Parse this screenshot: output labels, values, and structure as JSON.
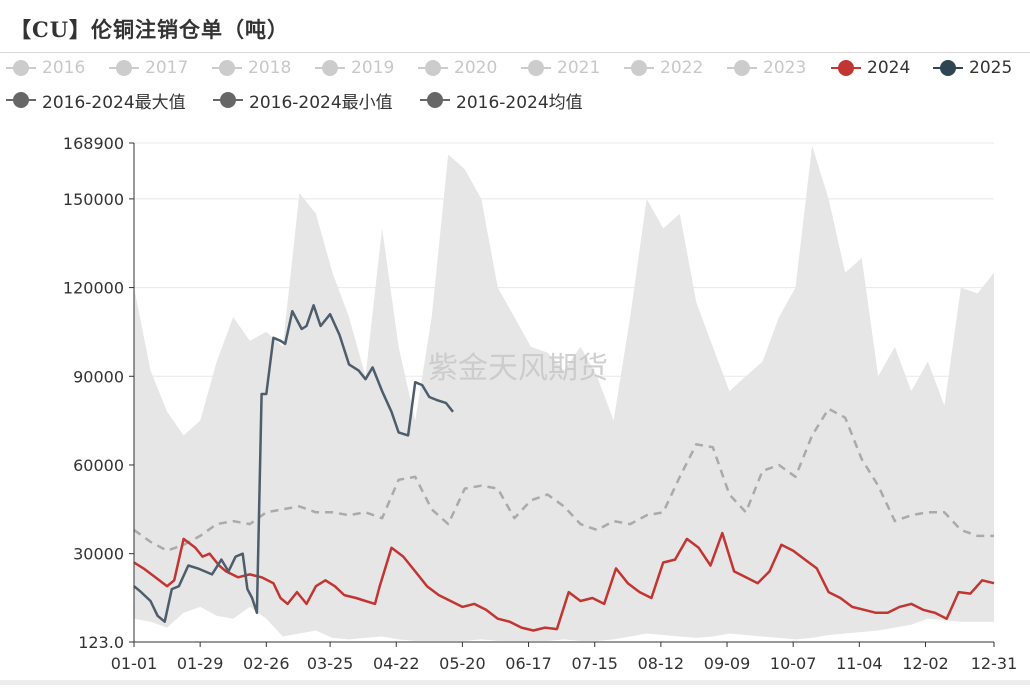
{
  "title": "【CU】伦铜注销仓单（吨）",
  "watermark": "紫金天风期货",
  "legend": [
    {
      "label": "2016",
      "color": "#cccccc",
      "text_color": "#c8c8c8",
      "kind": "dot"
    },
    {
      "label": "2017",
      "color": "#cccccc",
      "text_color": "#c8c8c8",
      "kind": "dot"
    },
    {
      "label": "2018",
      "color": "#cccccc",
      "text_color": "#c8c8c8",
      "kind": "dot"
    },
    {
      "label": "2019",
      "color": "#cccccc",
      "text_color": "#c8c8c8",
      "kind": "dot"
    },
    {
      "label": "2020",
      "color": "#cccccc",
      "text_color": "#c8c8c8",
      "kind": "dot"
    },
    {
      "label": "2021",
      "color": "#cccccc",
      "text_color": "#c8c8c8",
      "kind": "dot"
    },
    {
      "label": "2022",
      "color": "#cccccc",
      "text_color": "#c8c8c8",
      "kind": "dot"
    },
    {
      "label": "2023",
      "color": "#cccccc",
      "text_color": "#c8c8c8",
      "kind": "dot"
    },
    {
      "label": "2024",
      "color": "#c23531",
      "text_color": "#333333",
      "kind": "dot"
    },
    {
      "label": "2025",
      "color": "#2f4554",
      "text_color": "#333333",
      "kind": "dot"
    },
    {
      "label": "2016-2024最大值",
      "color": "#666666",
      "text_color": "#333333",
      "kind": "dot"
    },
    {
      "label": "2016-2024最小值",
      "color": "#666666",
      "text_color": "#333333",
      "kind": "dot"
    },
    {
      "label": "2016-2024均值",
      "color": "#666666",
      "text_color": "#333333",
      "kind": "dot"
    }
  ],
  "chart_data": {
    "type": "line",
    "xlabel": "",
    "ylabel": "",
    "ylim": [
      123,
      168900
    ],
    "y_ticks": [
      "123.0",
      "30000",
      "60000",
      "90000",
      "120000",
      "150000",
      "168900"
    ],
    "y_tick_values": [
      123,
      30000,
      60000,
      90000,
      120000,
      150000,
      168900
    ],
    "x_range": [
      1,
      365
    ],
    "x_ticks": [
      {
        "label": "01-01",
        "day": 1
      },
      {
        "label": "01-29",
        "day": 29
      },
      {
        "label": "02-26",
        "day": 57
      },
      {
        "label": "03-25",
        "day": 84
      },
      {
        "label": "04-22",
        "day": 112
      },
      {
        "label": "05-20",
        "day": 140
      },
      {
        "label": "06-17",
        "day": 168
      },
      {
        "label": "07-15",
        "day": 196
      },
      {
        "label": "08-12",
        "day": 224
      },
      {
        "label": "09-09",
        "day": 252
      },
      {
        "label": "10-07",
        "day": 280
      },
      {
        "label": "11-04",
        "day": 308
      },
      {
        "label": "12-02",
        "day": 336
      },
      {
        "label": "12-31",
        "day": 365
      }
    ],
    "grid": true,
    "legend_position": "top",
    "band": {
      "color": "#e6e6e6",
      "max": {
        "name": "2016-2024最大值",
        "x": [
          1,
          8,
          15,
          22,
          29,
          36,
          43,
          50,
          57,
          64,
          71,
          78,
          85,
          92,
          99,
          106,
          113,
          120,
          127,
          134,
          141,
          148,
          155,
          162,
          169,
          176,
          183,
          190,
          197,
          204,
          211,
          218,
          225,
          232,
          239,
          246,
          253,
          260,
          267,
          274,
          281,
          288,
          295,
          302,
          309,
          316,
          323,
          330,
          337,
          344,
          351,
          358,
          365
        ],
        "values": [
          120000,
          92000,
          78000,
          70000,
          75000,
          95000,
          110000,
          102000,
          105000,
          100000,
          152000,
          145000,
          125000,
          110000,
          90000,
          140000,
          100000,
          75000,
          110000,
          165000,
          160000,
          150000,
          120000,
          110000,
          100000,
          98000,
          92000,
          100000,
          90000,
          75000,
          110000,
          150000,
          140000,
          145000,
          115000,
          100000,
          85000,
          90000,
          95000,
          110000,
          120000,
          168000,
          150000,
          125000,
          130000,
          90000,
          100000,
          85000,
          95000,
          80000,
          120000,
          118000,
          125000
        ]
      },
      "min": {
        "name": "2016-2024最小值",
        "x": [
          1,
          8,
          15,
          22,
          29,
          36,
          43,
          50,
          57,
          64,
          71,
          78,
          85,
          92,
          99,
          106,
          113,
          120,
          127,
          134,
          141,
          148,
          155,
          162,
          169,
          176,
          183,
          190,
          197,
          204,
          211,
          218,
          225,
          232,
          239,
          246,
          253,
          260,
          267,
          274,
          281,
          288,
          295,
          302,
          309,
          316,
          323,
          330,
          337,
          344,
          351,
          358,
          365
        ],
        "values": [
          8000,
          7000,
          5000,
          10000,
          12000,
          9000,
          8000,
          12000,
          8000,
          2000,
          3000,
          4000,
          1500,
          1000,
          1500,
          2000,
          1000,
          500,
          500,
          500,
          500,
          1000,
          500,
          500,
          500,
          500,
          1000,
          500,
          500,
          1000,
          2000,
          3000,
          2500,
          2000,
          1500,
          2000,
          3000,
          2500,
          2000,
          1500,
          1000,
          1500,
          2500,
          3000,
          3500,
          4000,
          5000,
          6000,
          8000,
          7500,
          7000,
          7000,
          7000
        ]
      }
    },
    "series": [
      {
        "name": "2016-2024均值",
        "color": "#aaaaaa",
        "style": "dashed",
        "x": [
          1,
          8,
          15,
          22,
          29,
          36,
          43,
          50,
          57,
          64,
          71,
          78,
          85,
          92,
          99,
          106,
          113,
          120,
          127,
          134,
          141,
          148,
          155,
          162,
          169,
          176,
          183,
          190,
          197,
          204,
          211,
          218,
          225,
          232,
          239,
          246,
          253,
          260,
          267,
          274,
          281,
          288,
          295,
          302,
          309,
          316,
          323,
          330,
          337,
          344,
          351,
          358,
          365
        ],
        "values": [
          38000,
          34000,
          31000,
          33000,
          36000,
          40000,
          41000,
          40000,
          44000,
          45000,
          46000,
          44000,
          44000,
          43000,
          44000,
          42000,
          55000,
          56000,
          45000,
          40000,
          52000,
          53000,
          52000,
          42000,
          48000,
          50000,
          46000,
          40000,
          38000,
          41000,
          40000,
          43000,
          44000,
          56000,
          67000,
          66000,
          50000,
          44000,
          58000,
          60000,
          56000,
          70000,
          79000,
          76000,
          62000,
          53000,
          41000,
          43000,
          44000,
          44000,
          38000,
          36000,
          36000
        ]
      },
      {
        "name": "2024",
        "color": "#c23531",
        "style": "solid",
        "x": [
          1,
          5,
          10,
          15,
          18,
          22,
          27,
          30,
          33,
          37,
          40,
          45,
          50,
          55,
          60,
          63,
          66,
          70,
          74,
          78,
          82,
          86,
          90,
          95,
          99,
          103,
          105,
          110,
          115,
          120,
          125,
          130,
          135,
          140,
          145,
          150,
          155,
          160,
          165,
          170,
          175,
          180,
          185,
          190,
          195,
          200,
          205,
          210,
          215,
          220,
          225,
          230,
          235,
          240,
          245,
          250,
          255,
          260,
          265,
          270,
          275,
          280,
          285,
          290,
          295,
          300,
          305,
          310,
          315,
          320,
          325,
          330,
          335,
          340,
          345,
          350,
          355,
          360,
          365
        ],
        "values": [
          27000,
          25000,
          22000,
          19000,
          21000,
          35000,
          32000,
          29000,
          30000,
          26000,
          24000,
          22000,
          23000,
          22000,
          20000,
          15000,
          13000,
          17000,
          13000,
          19000,
          21000,
          19000,
          16000,
          15000,
          14000,
          13000,
          19000,
          32000,
          29000,
          24000,
          19000,
          16000,
          14000,
          12000,
          13000,
          11000,
          8000,
          7000,
          5000,
          4000,
          5000,
          4500,
          17000,
          14000,
          15000,
          13000,
          25000,
          20000,
          17000,
          15000,
          27000,
          28000,
          35000,
          32000,
          26000,
          37000,
          24000,
          22000,
          20000,
          24000,
          33000,
          31000,
          28000,
          25000,
          17000,
          15000,
          12000,
          11000,
          10000,
          10000,
          12000,
          13000,
          11000,
          10000,
          8000,
          17000,
          16500,
          21000,
          20000
        ]
      },
      {
        "name": "2025",
        "color": "#4d5d6b",
        "style": "solid",
        "x": [
          1,
          4,
          8,
          11,
          14,
          17,
          20,
          24,
          28,
          31,
          34,
          38,
          41,
          44,
          47,
          49,
          51,
          53,
          55,
          57,
          60,
          63,
          65,
          68,
          72,
          74,
          77,
          80,
          84,
          88,
          92,
          96,
          99,
          102,
          106,
          110,
          113,
          117,
          120,
          123,
          126,
          129,
          133,
          136
        ],
        "values": [
          19000,
          17000,
          14000,
          9000,
          7000,
          18000,
          19000,
          26000,
          25000,
          24000,
          23000,
          28000,
          24000,
          29000,
          30000,
          18000,
          15000,
          10000,
          84000,
          84000,
          103000,
          102000,
          101000,
          112000,
          106000,
          107000,
          114000,
          107000,
          111000,
          104000,
          94000,
          92000,
          89000,
          93000,
          85000,
          78000,
          71000,
          70000,
          88000,
          87000,
          83000,
          82000,
          81000,
          78000
        ]
      }
    ]
  }
}
